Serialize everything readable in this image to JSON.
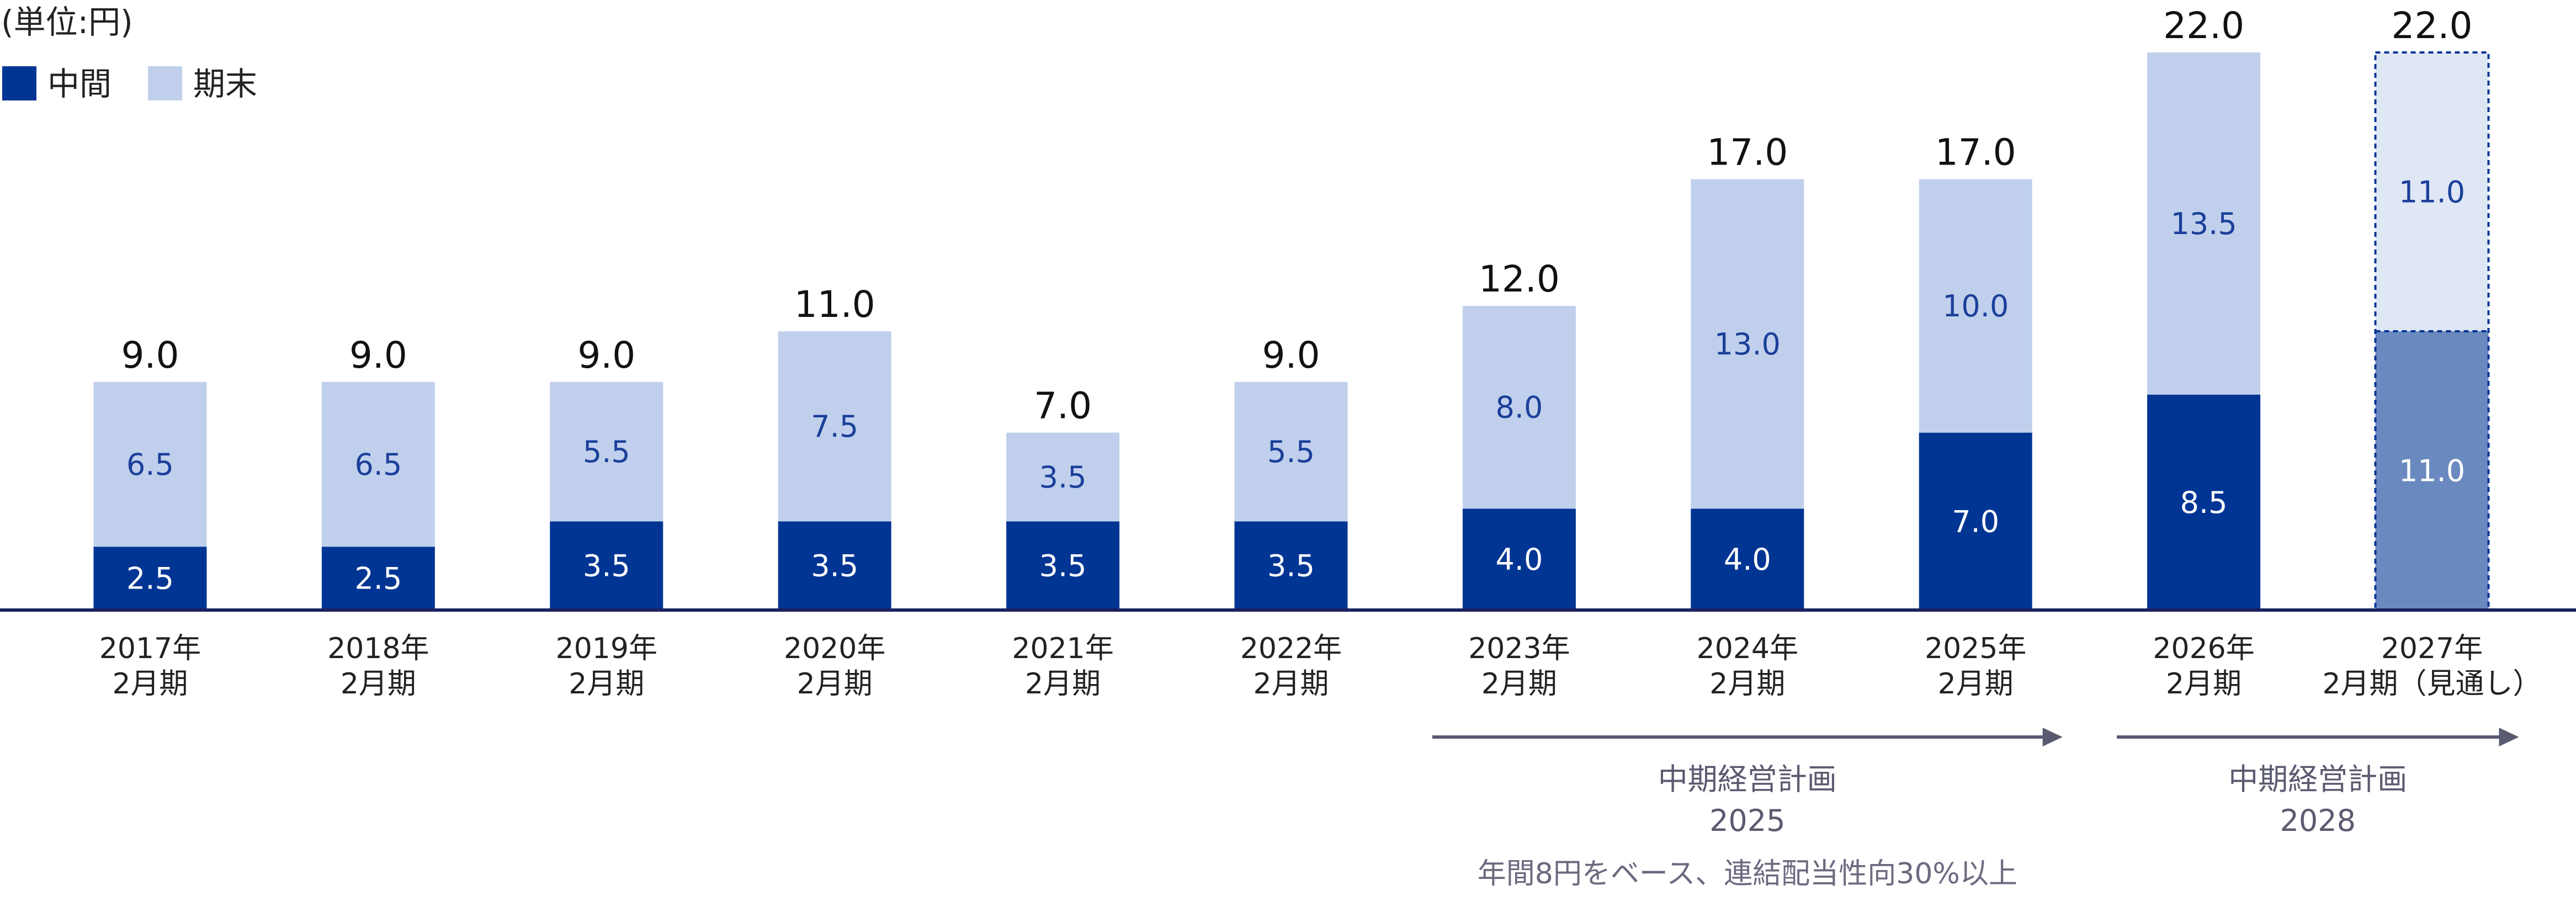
{
  "unit_label": "(単位:円)",
  "colors": {
    "interim": "#003594",
    "year_end": "#c0d0ec",
    "interim_forecast": "#6a8abf",
    "year_end_forecast": "#dfe6f4",
    "axis": "#1a2260",
    "plan_arrow": "#5a5a70",
    "seg_label_dark_bg": "#ffffff",
    "seg_label_light_bg": "#1b3f9a"
  },
  "chart_data": {
    "type": "bar",
    "stacked": true,
    "categories": [
      [
        "2017年",
        "2月期"
      ],
      [
        "2018年",
        "2月期"
      ],
      [
        "2019年",
        "2月期"
      ],
      [
        "2020年",
        "2月期"
      ],
      [
        "2021年",
        "2月期"
      ],
      [
        "2022年",
        "2月期"
      ],
      [
        "2023年",
        "2月期"
      ],
      [
        "2024年",
        "2月期"
      ],
      [
        "2025年",
        "2月期"
      ],
      [
        "2026年",
        "2月期"
      ],
      [
        "2027年",
        "2月期（見通し）"
      ]
    ],
    "series": [
      {
        "name": "中間",
        "values": [
          2.5,
          2.5,
          3.5,
          3.5,
          3.5,
          3.5,
          4.0,
          4.0,
          7.0,
          8.5,
          11.0
        ]
      },
      {
        "name": "期末",
        "values": [
          6.5,
          6.5,
          5.5,
          7.5,
          3.5,
          5.5,
          8.0,
          13.0,
          10.0,
          13.5,
          11.0
        ]
      }
    ],
    "totals": [
      9.0,
      9.0,
      9.0,
      11.0,
      7.0,
      9.0,
      12.0,
      17.0,
      17.0,
      22.0,
      22.0
    ],
    "forecast_index": 10,
    "ylim": [
      0,
      22.0
    ],
    "legend_position": "top-left",
    "grid": false
  },
  "plans": [
    {
      "name": "中期経営計画",
      "year": "2025",
      "note": "年間8円をベース、連結配当性向30%以上",
      "from_index": 6,
      "to_index": 8
    },
    {
      "name": "中期経営計画",
      "year": "2028",
      "note": "",
      "from_index": 9,
      "to_index": 10
    }
  ]
}
